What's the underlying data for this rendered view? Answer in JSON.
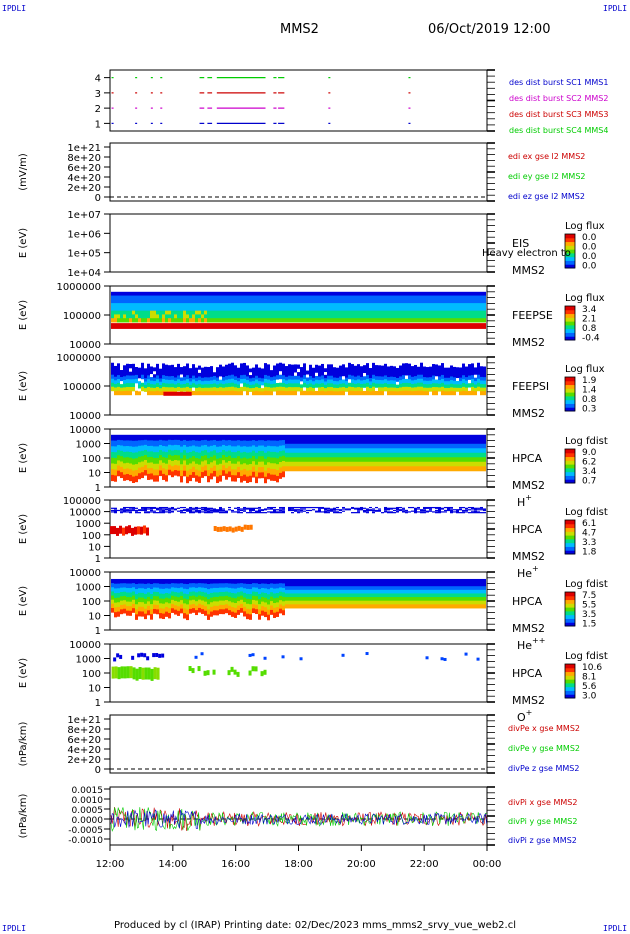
{
  "header": {
    "corner_tl": "IPDLI",
    "corner_tr": "IPDLI",
    "corner_bl": "IPDLI",
    "corner_br": "IPDLI",
    "title": "MMS2",
    "date": "06/Oct/2019 12:00"
  },
  "footer": {
    "text": "Produced by cl (IRAP)   Printing date: 02/Dec/2023   mms_mms2_srvy_vue_web2.cl"
  },
  "colors": {
    "red": "#cc0000",
    "magenta": "#cc00cc",
    "green": "#00cc00",
    "blue": "#0000cc",
    "colorbar": [
      "#0000dd",
      "#0066ff",
      "#00bbff",
      "#00dd88",
      "#55dd00",
      "#ccdd00",
      "#ffaa00",
      "#ff3300",
      "#dd0000"
    ]
  },
  "chart_data": [
    {
      "type": "scatter",
      "name": "burst",
      "x_range_hours": [
        12,
        24
      ],
      "ylim": [
        0.5,
        4.5
      ],
      "yticks": [
        "1",
        "2",
        "3",
        "4"
      ],
      "legend": [
        {
          "text": "des dist burst SC1 MMS1",
          "color": "#0000cc"
        },
        {
          "text": "des dist burst SC2 MMS2",
          "color": "#cc00cc"
        },
        {
          "text": "des dist burst SC3 MMS3",
          "color": "#cc0000"
        },
        {
          "text": "des dist burst SC4 MMS4",
          "color": "#00cc00"
        }
      ],
      "intervals": [
        [
          12.05,
          12.1
        ],
        [
          12.8,
          12.85
        ],
        [
          13.3,
          13.35
        ],
        [
          13.6,
          13.65
        ],
        [
          14.85,
          15.0
        ],
        [
          15.1,
          15.25
        ],
        [
          15.4,
          16.95
        ],
        [
          17.2,
          17.3
        ],
        [
          17.35,
          17.55
        ],
        [
          18.95,
          19.0
        ],
        [
          21.5,
          21.55
        ]
      ]
    },
    {
      "type": "line",
      "name": "edi",
      "ylabel": "(mV/m)",
      "ylim": [
        0,
        1e+21
      ],
      "yticks": [
        "0",
        "2e+20",
        "4e+20",
        "6e+20",
        "8e+20",
        "1e+21"
      ],
      "legend": [
        {
          "text": "edi ex gse l2 MMS2",
          "color": "#cc0000"
        },
        {
          "text": "edi ey gse l2 MMS2",
          "color": "#00cc00"
        },
        {
          "text": "edi ez gse l2 MMS2",
          "color": "#0000cc"
        }
      ]
    },
    {
      "type": "heatmap",
      "name": "eis",
      "ylabel": "E (eV)",
      "ytick_labels": [
        "1e+04",
        "1e+05",
        "1e+06",
        "1e+07"
      ],
      "label_inst": "EIS",
      "label_sc": "MMS2",
      "overlay_text": "Heavy electron to",
      "cbar_title": "Log flux",
      "cbar_ticks": [
        "0.0",
        "0.0",
        "0.0",
        "0.0"
      ]
    },
    {
      "type": "heatmap",
      "name": "feepse",
      "ylabel": "E (eV)",
      "ytick_labels": [
        "10000",
        "100000",
        "1000000"
      ],
      "label_inst": "FEEPSE",
      "label_sc": "MMS2",
      "cbar_title": "Log flux",
      "cbar_ticks": [
        "3.4",
        "2.1",
        "0.8",
        "-0.4"
      ]
    },
    {
      "type": "heatmap",
      "name": "feepsi",
      "ylabel": "E (eV)",
      "ytick_labels": [
        "10000",
        "100000",
        "1000000"
      ],
      "label_inst": "FEEPSI",
      "label_sc": "MMS2",
      "cbar_title": "Log flux",
      "cbar_ticks": [
        "1.9",
        "1.4",
        "0.8",
        "0.3"
      ]
    },
    {
      "type": "heatmap",
      "name": "hpca-h",
      "ylabel": "E (eV)",
      "ytick_labels": [
        "1",
        "10",
        "100",
        "1000",
        "10000"
      ],
      "label_inst": "HPCA",
      "label_sc": "MMS2",
      "species": "H",
      "species_sup": "+",
      "cbar_title": "Log fdist",
      "cbar_ticks": [
        "9.0",
        "6.2",
        "3.4",
        "0.7"
      ]
    },
    {
      "type": "heatmap",
      "name": "hpca-he1",
      "ylabel": "E (eV)",
      "ytick_labels": [
        "1",
        "10",
        "100",
        "1000",
        "10000",
        "100000"
      ],
      "label_inst": "HPCA",
      "label_sc": "MMS2",
      "species": "He",
      "species_sup": "+",
      "cbar_title": "Log fdist",
      "cbar_ticks": [
        "6.1",
        "4.7",
        "3.3",
        "1.8"
      ]
    },
    {
      "type": "heatmap",
      "name": "hpca-he2",
      "ylabel": "E (eV)",
      "ytick_labels": [
        "1",
        "10",
        "100",
        "1000",
        "10000"
      ],
      "label_inst": "HPCA",
      "label_sc": "MMS2",
      "species": "He",
      "species_sup": "++",
      "cbar_title": "Log fdist",
      "cbar_ticks": [
        "7.5",
        "5.5",
        "3.5",
        "1.5"
      ]
    },
    {
      "type": "heatmap",
      "name": "hpca-o",
      "ylabel": "E (eV)",
      "ytick_labels": [
        "1",
        "10",
        "100",
        "1000",
        "10000"
      ],
      "label_inst": "HPCA",
      "label_sc": "MMS2",
      "species": "O",
      "species_sup": "+",
      "cbar_title": "Log fdist",
      "cbar_ticks": [
        "10.6",
        "8.1",
        "5.6",
        "3.0"
      ]
    },
    {
      "type": "line",
      "name": "divpe",
      "ylabel": "(nPa/km)",
      "ylim": [
        0,
        1e+21
      ],
      "yticks": [
        "0",
        "2e+20",
        "4e+20",
        "6e+20",
        "8e+20",
        "1e+21"
      ],
      "legend": [
        {
          "text": "divPe x gse MMS2",
          "color": "#cc0000"
        },
        {
          "text": "divPe y gse MMS2",
          "color": "#00cc00"
        },
        {
          "text": "divPe z gse MMS2",
          "color": "#0000cc"
        }
      ]
    },
    {
      "type": "line",
      "name": "divpi",
      "ylabel": "(nPa/km)",
      "ylim": [
        -0.0013,
        0.0016
      ],
      "ytick_values": [
        -0.001,
        -0.0005,
        0.0,
        0.0005,
        0.001,
        0.0015
      ],
      "yticks": [
        "-0.0010",
        "-0.0005",
        "0.0000",
        "0.0005",
        "0.0010",
        "0.0015"
      ],
      "legend": [
        {
          "text": "divPi x gse MMS2",
          "color": "#cc0000"
        },
        {
          "text": "divPi y gse MMS2",
          "color": "#00cc00"
        },
        {
          "text": "divPi z gse MMS2",
          "color": "#0000cc"
        }
      ],
      "x_ticks": [
        "12:00",
        "14:00",
        "16:00",
        "18:00",
        "20:00",
        "22:00",
        "00:00"
      ]
    }
  ]
}
